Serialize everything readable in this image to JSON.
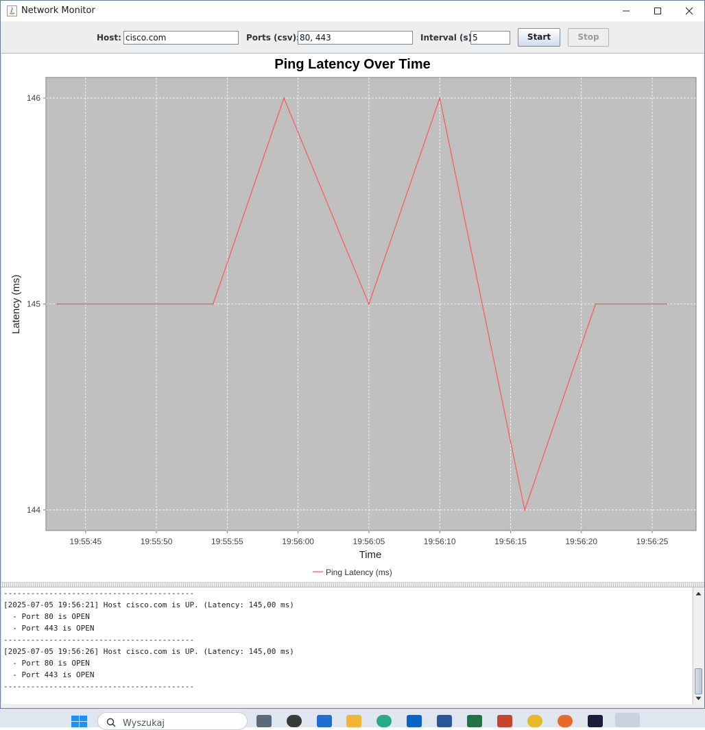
{
  "window": {
    "title": "Network Monitor"
  },
  "toolbar": {
    "host_label": "Host:",
    "host_value": "cisco.com",
    "ports_label": "Ports (csv):",
    "ports_value": "80, 443",
    "interval_label": "Interval (s):",
    "interval_value": "5",
    "start_label": "Start",
    "stop_label": "Stop"
  },
  "chart_data": {
    "type": "line",
    "title": "Ping Latency Over Time",
    "xlabel": "Time",
    "ylabel": "Latency (ms)",
    "x_ticks": [
      "19:55:45",
      "19:55:50",
      "19:55:55",
      "19:56:00",
      "19:56:05",
      "19:56:10",
      "19:56:15",
      "19:56:20",
      "19:56:25"
    ],
    "y_ticks": [
      "144",
      "145",
      "146"
    ],
    "x_range_seconds": [
      "19:55:42.2",
      "19:56:28.1"
    ],
    "ylim": [
      143.9,
      146.1
    ],
    "grid": true,
    "legend": "bottom-center",
    "series": [
      {
        "name": "Ping Latency (ms)",
        "color": "#ff5555",
        "x": [
          "19:55:43",
          "19:55:54",
          "19:55:59",
          "19:56:05",
          "19:56:10",
          "19:56:16",
          "19:56:21",
          "19:56:26"
        ],
        "values": [
          145,
          145,
          146,
          145,
          146,
          144,
          145,
          145
        ]
      }
    ]
  },
  "log": {
    "lines": [
      "------------------------------------------",
      "[2025-07-05 19:56:21] Host cisco.com is UP. (Latency: 145,00 ms)",
      "  - Port 80 is OPEN",
      "  - Port 443 is OPEN",
      "------------------------------------------",
      "[2025-07-05 19:56:26] Host cisco.com is UP. (Latency: 145,00 ms)",
      "  - Port 80 is OPEN",
      "  - Port 443 is OPEN",
      "------------------------------------------"
    ]
  },
  "taskbar": {
    "search_placeholder": "Wyszukaj"
  }
}
